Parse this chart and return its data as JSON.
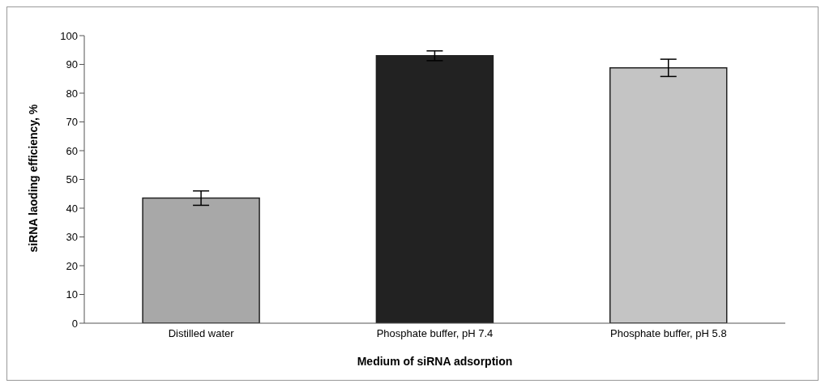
{
  "chart_data": {
    "type": "bar",
    "categories": [
      "Distilled water",
      "Phosphate buffer, pH 7.4",
      "Phosphate buffer, pH 5.8"
    ],
    "values": [
      43.5,
      93,
      88.8
    ],
    "errors": [
      2.5,
      1.7,
      3
    ],
    "colors": [
      "#a8a8a8",
      "#222222",
      "#c4c4c4"
    ],
    "xlabel": "Medium of siRNA adsorption",
    "ylabel": "siRNA laoding efficiency, %",
    "ylim": [
      0,
      100
    ],
    "yticks": [
      0,
      10,
      20,
      30,
      40,
      50,
      60,
      70,
      80,
      90,
      100
    ],
    "grid": false,
    "legend": false
  }
}
